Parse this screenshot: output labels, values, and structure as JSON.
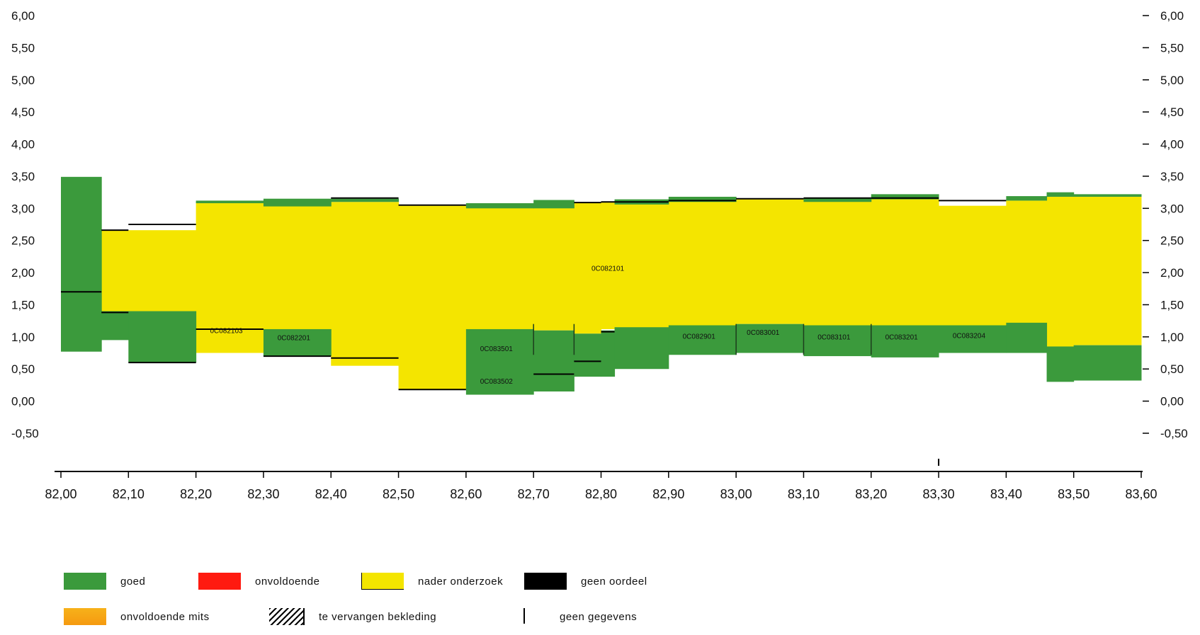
{
  "chart_data": {
    "type": "area",
    "x": {
      "min": 82.0,
      "max": 83.6,
      "ticks": [
        "82,00",
        "82,10",
        "82,20",
        "82,30",
        "82,40",
        "82,50",
        "82,60",
        "82,70",
        "82,80",
        "82,90",
        "83,00",
        "83,10",
        "83,20",
        "83,30",
        "83,40",
        "83,50",
        "83,60"
      ]
    },
    "y": {
      "min": -0.5,
      "max": 6.0,
      "ticks_left": [
        "6,00",
        "5,50",
        "5,00",
        "4,50",
        "4,00",
        "3,50",
        "3,00",
        "2,50",
        "2,00",
        "1,50",
        "1,00",
        "0,50",
        "0,00",
        "-0,50"
      ],
      "ticks_right": [
        "6,00",
        "5,50",
        "5,00",
        "4,50",
        "4,00",
        "3,50",
        "3,00",
        "2,50",
        "2,00",
        "1,50",
        "1,00",
        "0,50",
        "0,00",
        "-0,50"
      ]
    },
    "colors": {
      "goed": "#3b9a3c",
      "onvoldoende": "#ff1a10",
      "nader_onderzoek": "#f4e500",
      "geen_oordeel": "#000000",
      "onvoldoende_mits": "#f7a617"
    },
    "yellow_layer": [
      {
        "x0": 82.06,
        "x1": 82.2,
        "top": 2.66,
        "bottom": 1.4
      },
      {
        "x0": 82.2,
        "x1": 82.3,
        "top": 3.1,
        "bottom": 0.75
      },
      {
        "x0": 82.3,
        "x1": 82.4,
        "top": 3.1,
        "bottom": 0.7
      },
      {
        "x0": 82.4,
        "x1": 82.5,
        "top": 3.1,
        "bottom": 0.55
      },
      {
        "x0": 82.5,
        "x1": 82.6,
        "top": 3.04,
        "bottom": 0.18
      },
      {
        "x0": 82.6,
        "x1": 82.7,
        "top": 3.04,
        "bottom": 1.1
      },
      {
        "x0": 82.7,
        "x1": 82.76,
        "top": 3.02,
        "bottom": 1.1
      },
      {
        "x0": 82.76,
        "x1": 82.8,
        "top": 3.09,
        "bottom": 1.05
      },
      {
        "x0": 82.8,
        "x1": 82.9,
        "top": 3.09,
        "bottom": 1.12
      },
      {
        "x0": 82.9,
        "x1": 83.0,
        "top": 3.12,
        "bottom": 1.17
      },
      {
        "x0": 83.0,
        "x1": 83.1,
        "top": 3.14,
        "bottom": 1.2
      },
      {
        "x0": 83.1,
        "x1": 83.2,
        "top": 3.12,
        "bottom": 1.15
      },
      {
        "x0": 83.2,
        "x1": 83.3,
        "top": 3.15,
        "bottom": 1.16
      },
      {
        "x0": 83.3,
        "x1": 83.4,
        "top": 3.04,
        "bottom": 1.16
      },
      {
        "x0": 83.4,
        "x1": 83.46,
        "top": 3.12,
        "bottom": 1.2
      },
      {
        "x0": 83.46,
        "x1": 83.5,
        "top": 3.18,
        "bottom": 0.83
      },
      {
        "x0": 83.5,
        "x1": 83.6,
        "top": 3.18,
        "bottom": 0.87
      }
    ],
    "goed_layer": [
      {
        "x0": 82.0,
        "x1": 82.06,
        "top": 3.49,
        "bottom": 0.77
      },
      {
        "x0": 82.06,
        "x1": 82.1,
        "top": 1.4,
        "bottom": 0.95
      },
      {
        "x0": 82.1,
        "x1": 82.2,
        "top": 1.4,
        "bottom": 0.6
      },
      {
        "x0": 82.2,
        "x1": 82.3,
        "top": 3.12,
        "bottom": 3.08
      },
      {
        "x0": 82.3,
        "x1": 82.4,
        "top": 3.15,
        "bottom": 3.03
      },
      {
        "x0": 82.3,
        "x1": 82.4,
        "top": 1.12,
        "bottom": 0.7
      },
      {
        "x0": 82.4,
        "x1": 82.5,
        "top": 3.15,
        "bottom": 3.1
      },
      {
        "x0": 82.6,
        "x1": 82.7,
        "top": 3.08,
        "bottom": 3.0
      },
      {
        "x0": 82.6,
        "x1": 82.7,
        "top": 1.12,
        "bottom": 0.1
      },
      {
        "x0": 82.7,
        "x1": 82.76,
        "top": 3.13,
        "bottom": 3.0
      },
      {
        "x0": 82.7,
        "x1": 82.76,
        "top": 1.1,
        "bottom": 0.15
      },
      {
        "x0": 82.76,
        "x1": 82.8,
        "top": 1.05,
        "bottom": 0.38
      },
      {
        "x0": 82.8,
        "x1": 82.82,
        "top": 1.1,
        "bottom": 0.38
      },
      {
        "x0": 82.82,
        "x1": 82.9,
        "top": 1.15,
        "bottom": 0.5
      },
      {
        "x0": 82.82,
        "x1": 82.9,
        "top": 3.14,
        "bottom": 3.06
      },
      {
        "x0": 82.9,
        "x1": 83.0,
        "top": 1.18,
        "bottom": 0.72
      },
      {
        "x0": 82.9,
        "x1": 83.0,
        "top": 3.18,
        "bottom": 3.1
      },
      {
        "x0": 83.0,
        "x1": 83.1,
        "top": 1.2,
        "bottom": 0.75
      },
      {
        "x0": 83.1,
        "x1": 83.2,
        "top": 1.18,
        "bottom": 0.7
      },
      {
        "x0": 83.1,
        "x1": 83.2,
        "top": 3.16,
        "bottom": 3.1
      },
      {
        "x0": 83.2,
        "x1": 83.3,
        "top": 1.18,
        "bottom": 0.68
      },
      {
        "x0": 83.2,
        "x1": 83.3,
        "top": 3.22,
        "bottom": 3.14
      },
      {
        "x0": 83.3,
        "x1": 83.4,
        "top": 1.18,
        "bottom": 0.75
      },
      {
        "x0": 83.4,
        "x1": 83.46,
        "top": 1.22,
        "bottom": 0.75
      },
      {
        "x0": 83.4,
        "x1": 83.46,
        "top": 3.19,
        "bottom": 3.12
      },
      {
        "x0": 83.46,
        "x1": 83.5,
        "top": 3.25,
        "bottom": 3.18
      },
      {
        "x0": 83.46,
        "x1": 83.5,
        "top": 0.85,
        "bottom": 0.3
      },
      {
        "x0": 83.5,
        "x1": 83.6,
        "top": 3.22,
        "bottom": 3.18
      },
      {
        "x0": 83.5,
        "x1": 83.6,
        "top": 0.87,
        "bottom": 0.32
      }
    ],
    "geen_oordeel_lines": [
      {
        "x0": 82.0,
        "x1": 82.06,
        "y": 1.7
      },
      {
        "x0": 82.06,
        "x1": 82.1,
        "y": 2.66
      },
      {
        "x0": 82.1,
        "x1": 82.2,
        "y": 2.75
      },
      {
        "x0": 82.06,
        "x1": 82.1,
        "y": 1.38
      },
      {
        "x0": 82.1,
        "x1": 82.2,
        "y": 0.6
      },
      {
        "x0": 82.2,
        "x1": 82.3,
        "y": 1.12
      },
      {
        "x0": 82.3,
        "x1": 82.4,
        "y": 0.7
      },
      {
        "x0": 82.4,
        "x1": 82.5,
        "y": 3.16
      },
      {
        "x0": 82.4,
        "x1": 82.5,
        "y": 0.67
      },
      {
        "x0": 82.5,
        "x1": 82.6,
        "y": 3.05
      },
      {
        "x0": 82.5,
        "x1": 82.6,
        "y": 0.18
      },
      {
        "x0": 82.7,
        "x1": 82.76,
        "y": 0.42
      },
      {
        "x0": 82.76,
        "x1": 82.8,
        "y": 0.62
      },
      {
        "x0": 82.76,
        "x1": 82.8,
        "y": 3.09
      },
      {
        "x0": 82.8,
        "x1": 82.9,
        "y": 3.1
      },
      {
        "x0": 82.8,
        "x1": 82.82,
        "y": 1.08
      },
      {
        "x0": 82.9,
        "x1": 83.0,
        "y": 3.12
      },
      {
        "x0": 83.0,
        "x1": 83.1,
        "y": 3.15
      },
      {
        "x0": 83.1,
        "x1": 83.2,
        "y": 3.16
      },
      {
        "x0": 83.2,
        "x1": 83.3,
        "y": 3.16
      },
      {
        "x0": 83.3,
        "x1": 83.4,
        "y": 3.12
      }
    ],
    "section_dividers": [
      82.7,
      82.76,
      83.0,
      83.1,
      83.2
    ],
    "geen_gegevens_ticks": [
      83.3
    ],
    "labels": [
      {
        "text": "0C082101",
        "x": 82.81,
        "y": 2.03
      },
      {
        "text": "0C082103",
        "x": 82.245,
        "y": 1.06
      },
      {
        "text": "0C082201",
        "x": 82.345,
        "y": 0.95
      },
      {
        "text": "0C083501",
        "x": 82.645,
        "y": 0.78
      },
      {
        "text": "0C083502",
        "x": 82.645,
        "y": 0.27
      },
      {
        "text": "0C082901",
        "x": 82.945,
        "y": 0.97
      },
      {
        "text": "0C083001",
        "x": 83.04,
        "y": 1.03
      },
      {
        "text": "0C083101",
        "x": 83.145,
        "y": 0.96
      },
      {
        "text": "0C083201",
        "x": 83.245,
        "y": 0.96
      },
      {
        "text": "0C083204",
        "x": 83.345,
        "y": 0.98
      }
    ]
  },
  "legend": [
    {
      "key": "goed",
      "label": "goed"
    },
    {
      "key": "onvoldoende",
      "label": "onvoldoende"
    },
    {
      "key": "nader_onderzoek",
      "label": "nader onderzoek"
    },
    {
      "key": "geen_oordeel",
      "label": "geen oordeel"
    },
    {
      "key": "onvoldoende_mits",
      "label": "onvoldoende mits"
    },
    {
      "key": "te_vervangen",
      "label": "te vervangen bekleding"
    },
    {
      "key": "geen_gegevens",
      "label": "geen gegevens"
    }
  ]
}
